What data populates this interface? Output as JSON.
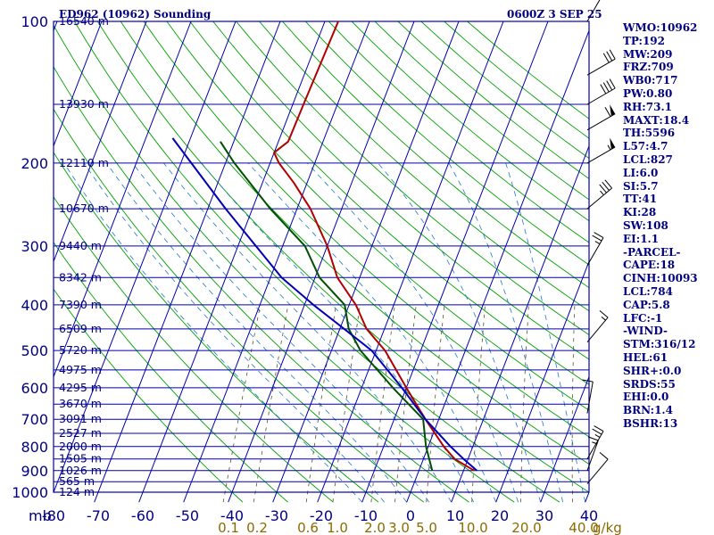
{
  "header": {
    "title": "ED962 (10962) Sounding",
    "time": "0600Z  3 SEP 25"
  },
  "stats": [
    "WMO:10962",
    "TP:192",
    "MW:209",
    "FRZ:709",
    "WB0:717",
    "PW:0.80",
    "RH:73.1",
    "MAXT:18.4",
    "TH:5596",
    "L57:4.7",
    "LCL:827",
    "LI:6.0",
    "SI:5.7",
    "TT:41",
    "KI:28",
    "SW:108",
    "EI:1.1",
    "-PARCEL-",
    "CAPE:18",
    "CINH:10093",
    "LCL:784",
    "CAP:5.8",
    "LFC:-1",
    "-WIND-",
    "STM:316/12",
    "HEL:61",
    "SHR+:0.0",
    "SRDS:55",
    "EHI:0.0",
    "BRN:1.4",
    "BSHR:13"
  ],
  "colors": {
    "isobar": "#0000aa",
    "isotherm": "#0000aa",
    "dry_adiabat": "#00a000",
    "moist_adiabat": "#1f78c8",
    "mixing_ratio": "#555522",
    "temperature": "#b00000",
    "dewpoint": "#005000",
    "parcel": "#0000b0",
    "wind_barbs": "#000000",
    "text": "#000080"
  },
  "chart_data": {
    "type": "line",
    "title": "ED962 (10962) Sounding",
    "xlabel": "",
    "ylabel": "",
    "skew_t": true,
    "y_scale": "log",
    "pressure_axis_unit": "mb",
    "temperature_axis_unit": "°C",
    "pressure_ticks": [
      100,
      200,
      300,
      400,
      500,
      600,
      700,
      800,
      900,
      1000
    ],
    "pressure_tick_labels": [
      "100",
      "200",
      "300",
      "400",
      "500",
      "600",
      "700",
      "800",
      "900",
      "1000"
    ],
    "temperature_ticks": [
      -80,
      -70,
      -60,
      -50,
      -40,
      -30,
      -20,
      -10,
      0,
      10,
      20,
      30,
      40
    ],
    "temperature_tick_labels": [
      "-80",
      "-70",
      "-60",
      "-50",
      "-40",
      "-30",
      "-20",
      "-10",
      "0",
      "10",
      "20",
      "30",
      "40"
    ],
    "mixing_ratio_label_values": [
      0.1,
      0.2,
      0.6,
      1.0,
      2.0,
      3.0,
      5.0,
      10.0,
      20.0,
      40.0
    ],
    "mixing_ratio_labels": [
      "0.1",
      "0.2",
      "0.6",
      "1.0",
      "2.0",
      "3.0",
      "5.0",
      "10.0",
      "20.0",
      "40.0"
    ],
    "mixing_ratio_unit": "g/kg",
    "height_levels": [
      {
        "p": 100,
        "label": "16540 m"
      },
      {
        "p": 150,
        "label": "13930 m"
      },
      {
        "p": 200,
        "label": "12110 m"
      },
      {
        "p": 250,
        "label": "10670 m"
      },
      {
        "p": 300,
        "label": "9440 m"
      },
      {
        "p": 350,
        "label": "8342 m"
      },
      {
        "p": 400,
        "label": "7390 m"
      },
      {
        "p": 450,
        "label": "6509 m"
      },
      {
        "p": 500,
        "label": "5720 m"
      },
      {
        "p": 550,
        "label": "4975 m"
      },
      {
        "p": 600,
        "label": "4295 m"
      },
      {
        "p": 650,
        "label": "3670 m"
      },
      {
        "p": 700,
        "label": "3091 m"
      },
      {
        "p": 750,
        "label": "2527 m"
      },
      {
        "p": 800,
        "label": "2000 m"
      },
      {
        "p": 850,
        "label": "1505 m"
      },
      {
        "p": 900,
        "label": "1026 m"
      },
      {
        "p": 950,
        "label": "565 m"
      },
      {
        "p": 1000,
        "label": "124 m"
      }
    ],
    "series": [
      {
        "key": "temperature",
        "points": [
          [
            100,
            -57
          ],
          [
            150,
            -57.6
          ],
          [
            180,
            -57.8
          ],
          [
            190,
            -60
          ],
          [
            200,
            -58
          ],
          [
            220,
            -53
          ],
          [
            250,
            -47
          ],
          [
            300,
            -40
          ],
          [
            350,
            -35
          ],
          [
            400,
            -28.5
          ],
          [
            450,
            -24
          ],
          [
            500,
            -18
          ],
          [
            600,
            -10
          ],
          [
            700,
            -3
          ],
          [
            800,
            3.5
          ],
          [
            850,
            7
          ],
          [
            900,
            12.4
          ]
        ]
      },
      {
        "key": "dewpoint",
        "points": [
          [
            180,
            -73
          ],
          [
            200,
            -68
          ],
          [
            250,
            -56
          ],
          [
            300,
            -45
          ],
          [
            350,
            -39
          ],
          [
            400,
            -31
          ],
          [
            450,
            -28
          ],
          [
            500,
            -23.5
          ],
          [
            600,
            -13
          ],
          [
            700,
            -3.5
          ],
          [
            800,
            -0.5
          ],
          [
            900,
            3
          ]
        ]
      },
      {
        "key": "parcel",
        "points": [
          [
            177,
            -84
          ],
          [
            250,
            -66
          ],
          [
            300,
            -56
          ],
          [
            350,
            -47.5
          ],
          [
            400,
            -38
          ],
          [
            450,
            -29
          ],
          [
            500,
            -21
          ],
          [
            600,
            -11
          ],
          [
            700,
            -3
          ],
          [
            800,
            5
          ],
          [
            850,
            9
          ],
          [
            900,
            13
          ]
        ]
      }
    ],
    "wind_barbs": [
      {
        "p": 100,
        "dir": 330,
        "spd": 10
      },
      {
        "p": 130,
        "dir": 300,
        "spd": 30
      },
      {
        "p": 150,
        "dir": 300,
        "spd": 40
      },
      {
        "p": 170,
        "dir": 300,
        "spd": 60
      },
      {
        "p": 200,
        "dir": 300,
        "spd": 55
      },
      {
        "p": 250,
        "dir": 310,
        "spd": 35
      },
      {
        "p": 330,
        "dir": 330,
        "spd": 25
      },
      {
        "p": 480,
        "dir": 320,
        "spd": 15
      },
      {
        "p": 680,
        "dir": 350,
        "spd": 10
      },
      {
        "p": 850,
        "dir": 330,
        "spd": 25
      },
      {
        "p": 900,
        "dir": 340,
        "spd": 15
      },
      {
        "p": 960,
        "dir": 320,
        "spd": 10
      }
    ]
  }
}
